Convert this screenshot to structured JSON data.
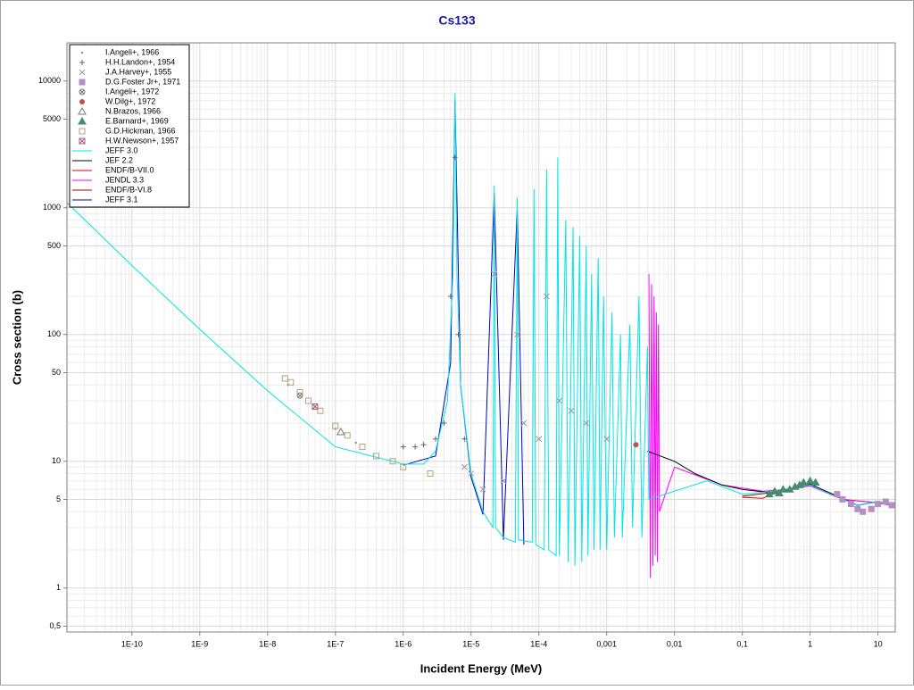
{
  "chart_data": {
    "type": "scatter-line",
    "title": "Cs133",
    "xlabel": "Incident Energy (MeV)",
    "ylabel": "Cross section (b)",
    "xscale": "log",
    "yscale": "log",
    "xlim": [
      1.1e-11,
      18
    ],
    "ylim": [
      0.45,
      20000
    ],
    "xticks": [
      {
        "value": 1e-10,
        "label": "1E-10"
      },
      {
        "value": 1e-09,
        "label": "1E-9"
      },
      {
        "value": 1e-08,
        "label": "1E-8"
      },
      {
        "value": 1e-07,
        "label": "1E-7"
      },
      {
        "value": 1e-06,
        "label": "1E-6"
      },
      {
        "value": 1e-05,
        "label": "1E-5"
      },
      {
        "value": 0.0001,
        "label": "1E-4"
      },
      {
        "value": 0.001,
        "label": "0,001"
      },
      {
        "value": 0.01,
        "label": "0,01"
      },
      {
        "value": 0.1,
        "label": "0,1"
      },
      1,
      10
    ],
    "yticks": [
      {
        "value": 0.5,
        "label": "0,5"
      },
      1,
      5,
      10,
      50,
      100,
      500,
      1000,
      5000,
      10000
    ],
    "grid": true,
    "minor_grid": true,
    "legend": "upper left",
    "series": [
      {
        "name": "I.Angeli+, 1966",
        "marker": "dot",
        "color": "#888888",
        "x": [
          2e-08,
          5e-08,
          1e-07,
          2e-07
        ],
        "values": [
          40,
          27,
          18,
          14
        ]
      },
      {
        "name": "H.H.Landon+, 1954",
        "marker": "plus",
        "color": "#666666",
        "x": [
          1e-06,
          1.5e-06,
          2e-06,
          3e-06,
          4e-06,
          5e-06,
          5.8e-06,
          6.5e-06,
          8e-06
        ],
        "values": [
          13,
          13,
          13.5,
          15,
          20,
          200,
          2500,
          100,
          15
        ]
      },
      {
        "name": "J.A.Harvey+, 1955",
        "marker": "cross",
        "color": "#999999",
        "x": [
          8e-06,
          1e-05,
          1.5e-05,
          2.2e-05,
          3e-05,
          4.8e-05,
          6e-05,
          0.0001,
          0.00013,
          0.0002,
          0.0003,
          0.0005,
          0.001
        ],
        "values": [
          9,
          8,
          6,
          300,
          7,
          100,
          20,
          15,
          200,
          30,
          25,
          20,
          15
        ]
      },
      {
        "name": "D.G.Foster Jr+, 1971",
        "marker": "square-filled",
        "color": "#b48ec4",
        "x": [
          2.5,
          3,
          4,
          5,
          6,
          8,
          10,
          13,
          16
        ],
        "values": [
          5.5,
          5,
          4.6,
          4.2,
          4,
          4.2,
          4.6,
          4.8,
          4.5
        ]
      },
      {
        "name": "I.Angeli+, 1972",
        "marker": "circle-x",
        "color": "#777777",
        "x": [
          3e-08
        ],
        "values": [
          33
        ]
      },
      {
        "name": "W.Dilg+, 1972",
        "marker": "circle-filled",
        "color": "#c0504d",
        "x": [
          0.0027
        ],
        "values": [
          13.5
        ]
      },
      {
        "name": "N.Brazos, 1966",
        "marker": "triangle",
        "color": "#777777",
        "x": [
          1.2e-07
        ],
        "values": [
          17
        ]
      },
      {
        "name": "E.Barnard+, 1969",
        "marker": "triangle-filled",
        "color": "#4a8a6e",
        "x": [
          0.25,
          0.3,
          0.35,
          0.4,
          0.5,
          0.6,
          0.7,
          0.8,
          1,
          1.2
        ],
        "values": [
          5.5,
          5.8,
          5.6,
          6,
          6,
          6.3,
          6.5,
          6.8,
          7,
          6.8
        ]
      },
      {
        "name": "G.D.Hickman, 1966",
        "marker": "square",
        "color": "#b8a07a",
        "x": [
          1.8e-08,
          2.2e-08,
          3e-08,
          4e-08,
          6e-08,
          1e-07,
          1.5e-07,
          2.5e-07,
          4e-07,
          7e-07,
          1e-06,
          2.5e-06
        ],
        "values": [
          45,
          42,
          35,
          30,
          25,
          19,
          16,
          13,
          11,
          10,
          9,
          8
        ]
      },
      {
        "name": "H.W.Newson+, 1957",
        "marker": "square-x",
        "color": "#a06080",
        "x": [
          5e-08
        ],
        "values": [
          27
        ]
      },
      {
        "name": "JEFF 3.0",
        "marker": "line",
        "color": "#00e5e5",
        "x": [
          1.1e-11,
          1e-10,
          1e-09,
          1e-08,
          1e-07,
          1e-06,
          2e-06,
          3e-06,
          4.5e-06,
          5.4e-06,
          5.8e-06,
          6.2e-06,
          7e-06,
          1e-05,
          1.5e-05,
          2.1e-05,
          2.2e-05,
          2.3e-05,
          3e-05,
          4.5e-05,
          4.8e-05,
          5e-05,
          8e-05,
          8.5e-05,
          9e-05,
          0.00012,
          0.00013,
          0.00014,
          0.00018,
          0.00019,
          0.0002,
          0.00025,
          0.00027,
          0.00032,
          0.00034,
          0.0004,
          0.00043,
          0.0005,
          0.00053,
          0.0006,
          0.00065,
          0.00075,
          0.0008,
          0.0009,
          0.001,
          0.0012,
          0.0013,
          0.0016,
          0.0017,
          0.0022,
          0.0024,
          0.003,
          0.0033,
          0.004,
          0.0042,
          0.03,
          0.1,
          0.3,
          1,
          2,
          5,
          10,
          18
        ],
        "values": [
          1100,
          350,
          110,
          36,
          13,
          9.5,
          9.5,
          12,
          30,
          300,
          8000,
          300,
          40,
          8,
          4,
          3,
          1500,
          3,
          2.5,
          2.3,
          1200,
          2.4,
          2.3,
          1400,
          2.2,
          2,
          2000,
          2,
          1.8,
          2500,
          1.8,
          800,
          1.6,
          700,
          1.5,
          600,
          1.6,
          500,
          1.8,
          300,
          2,
          400,
          2,
          200,
          2,
          150,
          2.5,
          100,
          2.5,
          120,
          3,
          200,
          2.5,
          80,
          5,
          7,
          5.5,
          5.8,
          6.5,
          5.5,
          4.5,
          4.8,
          4.4
        ]
      },
      {
        "name": "JEF 2.2",
        "marker": "line",
        "color": "#000000",
        "x": [
          0.004,
          0.01,
          0.02,
          0.05,
          0.1,
          0.3,
          1,
          2,
          5,
          10,
          18
        ],
        "values": [
          12,
          10,
          8,
          6.5,
          6,
          5.6,
          6.6,
          5.6,
          4.5,
          4.8,
          4.4
        ]
      },
      {
        "name": "ENDF/B-VII.0",
        "marker": "line",
        "color": "#e00000",
        "x": [
          0.1,
          0.2,
          0.3,
          1,
          2,
          5,
          10,
          18
        ],
        "values": [
          5.2,
          5.1,
          5.6,
          6.6,
          5.5,
          4.5,
          4.8,
          4.4
        ]
      },
      {
        "name": "JENDL 3.3",
        "marker": "line",
        "color": "#ff00ff",
        "x": [
          0.0042,
          0.0044,
          0.0046,
          0.0048,
          0.005,
          0.0052,
          0.0054,
          0.0056,
          0.0058,
          0.006,
          0.01,
          0.05,
          0.2,
          0.5,
          1,
          3,
          10,
          18
        ],
        "values": [
          300,
          1.2,
          250,
          1.5,
          200,
          1.8,
          150,
          1.6,
          120,
          4,
          9,
          6.5,
          5.8,
          6,
          6.4,
          5,
          4.7,
          4.4
        ]
      },
      {
        "name": "ENDF/B-VI.8",
        "marker": "line",
        "color": "#a00000",
        "x": [
          0.1,
          0.3,
          1,
          3,
          10,
          18
        ],
        "values": [
          5.3,
          5.7,
          6.5,
          5,
          4.7,
          4.4
        ]
      },
      {
        "name": "JEFF 3.1",
        "marker": "line",
        "color": "#0000c0",
        "x": [
          1e-06,
          3e-06,
          5e-06,
          5.8e-06,
          7e-06,
          1e-05,
          1.5e-05,
          2.2e-05,
          3e-05,
          4.8e-05,
          6e-05
        ],
        "values": [
          9.3,
          11,
          60,
          7000,
          40,
          7.5,
          3.8,
          1300,
          2.4,
          1000,
          2.2
        ]
      }
    ]
  }
}
